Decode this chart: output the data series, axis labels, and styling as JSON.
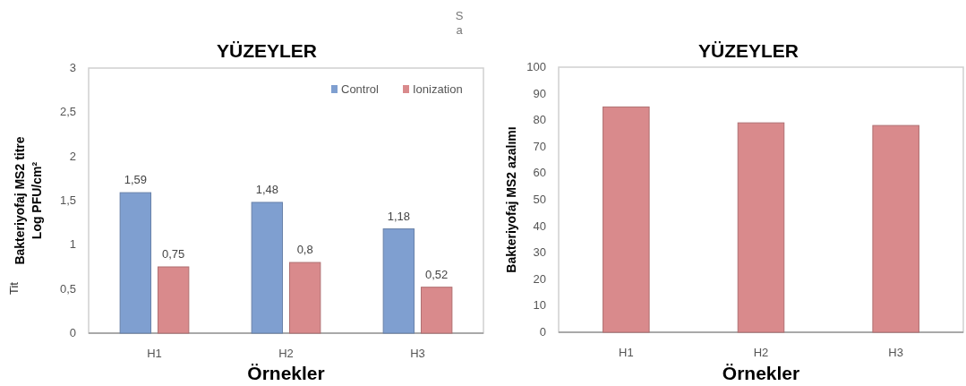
{
  "chart_data": [
    {
      "type": "bar",
      "title": "YÜZEYLER",
      "xlabel": "Örnekler",
      "ylabel": "Bakteriyofaj MS2 titre\nLog PFU/cm²",
      "categories": [
        "H1",
        "H2",
        "H3"
      ],
      "series": [
        {
          "name": "Control",
          "color": "#7f9fd0",
          "values": [
            1.59,
            1.48,
            1.18
          ],
          "value_labels": [
            "1,59",
            "1,48",
            "1,18"
          ]
        },
        {
          "name": "Ionization",
          "color": "#d98a8c",
          "values": [
            0.75,
            0.8,
            0.52
          ],
          "value_labels": [
            "0,75",
            "0,8",
            "0,52"
          ]
        }
      ],
      "ylim": [
        0,
        3
      ],
      "yticks": [
        0,
        {
          "value": 0.5,
          "label": "0,5"
        },
        1,
        {
          "value": 1.5,
          "label": "1,5"
        },
        2,
        {
          "value": 2.5,
          "label": "2,5"
        },
        3
      ],
      "legend": "top right",
      "annotations": [
        "S",
        "a",
        "Tit"
      ]
    },
    {
      "type": "bar",
      "title": "YÜZEYLER",
      "xlabel": "Örnekler",
      "ylabel": "Bakteriyofaj MS2 azalımı",
      "categories": [
        "H1",
        "H2",
        "H3"
      ],
      "series": [
        {
          "color": "#d98a8c",
          "values": [
            85,
            79,
            78
          ]
        }
      ],
      "ylim": [
        0,
        100
      ],
      "yticks": [
        0,
        10,
        20,
        30,
        40,
        50,
        60,
        70,
        80,
        90,
        100
      ]
    }
  ]
}
